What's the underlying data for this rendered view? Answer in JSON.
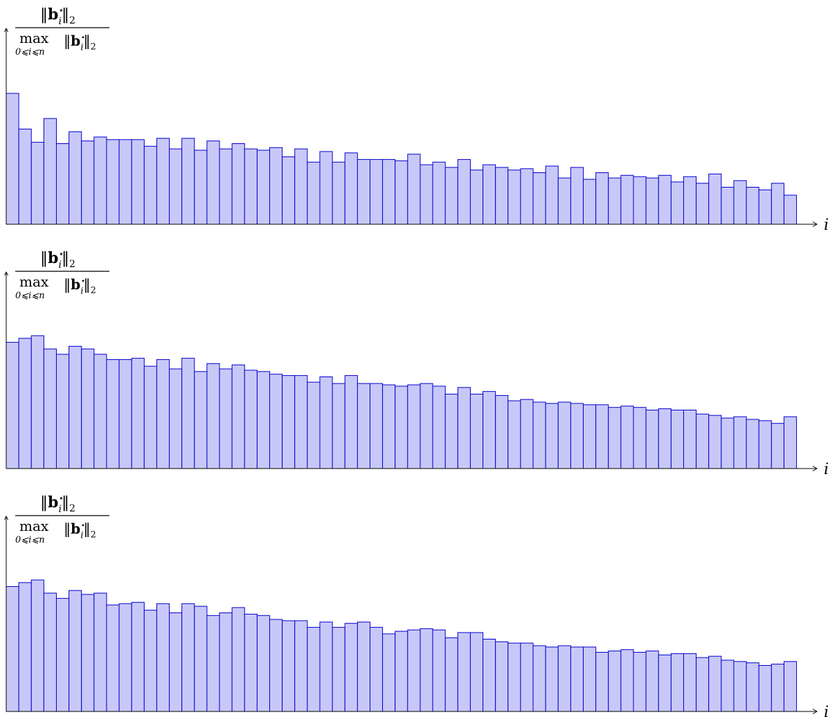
{
  "chart_data": [
    {
      "type": "bar",
      "ylabel": {
        "numerator": "‖b⋆i‖2",
        "denominator_max": "max",
        "denominator_sub": "0⩽i⩽n",
        "denominator_norm": "‖b⋆i‖2"
      },
      "xlabel": "i",
      "ylim": [
        0,
        1
      ],
      "series_color": "#c8c8f8",
      "stroke_color": "#0000cc",
      "values": [
        0.99,
        0.72,
        0.62,
        0.8,
        0.61,
        0.7,
        0.63,
        0.66,
        0.64,
        0.64,
        0.64,
        0.59,
        0.65,
        0.57,
        0.65,
        0.56,
        0.63,
        0.57,
        0.61,
        0.57,
        0.56,
        0.58,
        0.51,
        0.57,
        0.47,
        0.55,
        0.47,
        0.54,
        0.49,
        0.49,
        0.49,
        0.48,
        0.53,
        0.45,
        0.47,
        0.43,
        0.49,
        0.41,
        0.45,
        0.43,
        0.41,
        0.42,
        0.39,
        0.44,
        0.35,
        0.43,
        0.34,
        0.39,
        0.35,
        0.37,
        0.36,
        0.35,
        0.37,
        0.32,
        0.36,
        0.31,
        0.38,
        0.28,
        0.33,
        0.28,
        0.26,
        0.31,
        0.22
      ]
    },
    {
      "type": "bar",
      "ylabel": {
        "numerator": "‖b⋆i‖2",
        "denominator_max": "max",
        "denominator_sub": "0⩽i⩽n",
        "denominator_norm": "‖b⋆i‖2"
      },
      "xlabel": "i",
      "ylim": [
        0,
        1
      ],
      "series_color": "#c8c8f8",
      "stroke_color": "#0000cc",
      "values": [
        0.95,
        0.98,
        1.0,
        0.9,
        0.86,
        0.92,
        0.9,
        0.86,
        0.82,
        0.82,
        0.83,
        0.77,
        0.82,
        0.75,
        0.83,
        0.73,
        0.79,
        0.75,
        0.78,
        0.74,
        0.73,
        0.71,
        0.7,
        0.7,
        0.65,
        0.69,
        0.64,
        0.7,
        0.64,
        0.64,
        0.63,
        0.62,
        0.63,
        0.64,
        0.62,
        0.56,
        0.61,
        0.56,
        0.58,
        0.55,
        0.51,
        0.52,
        0.5,
        0.49,
        0.5,
        0.49,
        0.48,
        0.48,
        0.46,
        0.47,
        0.46,
        0.44,
        0.45,
        0.44,
        0.44,
        0.41,
        0.4,
        0.38,
        0.39,
        0.37,
        0.36,
        0.34,
        0.39
      ]
    },
    {
      "type": "bar",
      "ylabel": {
        "numerator": "‖b⋆i‖2",
        "denominator_max": "max",
        "denominator_sub": "0⩽i⩽n",
        "denominator_norm": "‖b⋆i‖2"
      },
      "xlabel": "i",
      "ylim": [
        0,
        1
      ],
      "series_color": "#c8c8f8",
      "stroke_color": "#0000cc",
      "values": [
        0.95,
        0.98,
        1.0,
        0.9,
        0.86,
        0.92,
        0.89,
        0.9,
        0.81,
        0.82,
        0.83,
        0.77,
        0.82,
        0.75,
        0.82,
        0.8,
        0.73,
        0.75,
        0.79,
        0.74,
        0.73,
        0.7,
        0.69,
        0.69,
        0.64,
        0.68,
        0.64,
        0.67,
        0.68,
        0.64,
        0.59,
        0.61,
        0.62,
        0.63,
        0.62,
        0.56,
        0.6,
        0.6,
        0.55,
        0.53,
        0.52,
        0.52,
        0.5,
        0.49,
        0.5,
        0.49,
        0.49,
        0.45,
        0.46,
        0.47,
        0.45,
        0.46,
        0.43,
        0.44,
        0.44,
        0.41,
        0.42,
        0.39,
        0.38,
        0.37,
        0.35,
        0.36,
        0.38
      ]
    }
  ]
}
